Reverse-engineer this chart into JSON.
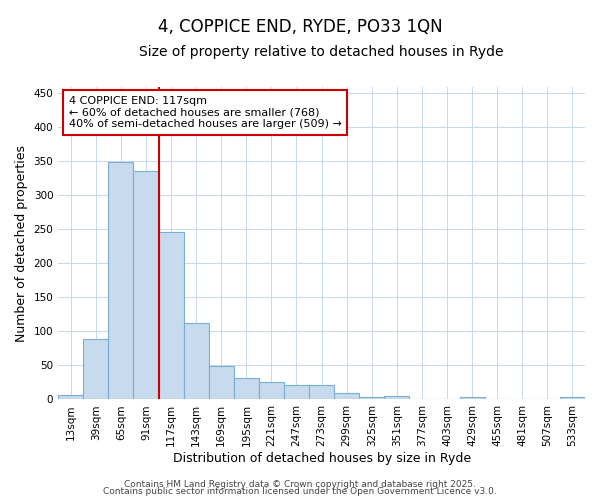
{
  "title": "4, COPPICE END, RYDE, PO33 1QN",
  "subtitle": "Size of property relative to detached houses in Ryde",
  "xlabel": "Distribution of detached houses by size in Ryde",
  "ylabel": "Number of detached properties",
  "categories": [
    "13sqm",
    "39sqm",
    "65sqm",
    "91sqm",
    "117sqm",
    "143sqm",
    "169sqm",
    "195sqm",
    "221sqm",
    "247sqm",
    "273sqm",
    "299sqm",
    "325sqm",
    "351sqm",
    "377sqm",
    "403sqm",
    "429sqm",
    "455sqm",
    "481sqm",
    "507sqm",
    "533sqm"
  ],
  "values": [
    6,
    89,
    349,
    336,
    246,
    113,
    49,
    32,
    25,
    21,
    21,
    9,
    3,
    5,
    1,
    1,
    3,
    0,
    0,
    0,
    3
  ],
  "bar_color": "#c8daee",
  "bar_edge_color": "#7aafd4",
  "vline_color": "#cc0000",
  "annotation_text": "4 COPPICE END: 117sqm\n← 60% of detached houses are smaller (768)\n40% of semi-detached houses are larger (509) →",
  "annotation_box_color": "white",
  "annotation_box_edge": "#cc0000",
  "ylim": [
    0,
    460
  ],
  "yticks": [
    0,
    50,
    100,
    150,
    200,
    250,
    300,
    350,
    400,
    450
  ],
  "footer1": "Contains HM Land Registry data © Crown copyright and database right 2025.",
  "footer2": "Contains public sector information licensed under the Open Government Licence v3.0.",
  "bg_color": "#ffffff",
  "grid_color": "#c8d8ec",
  "title_fontsize": 12,
  "subtitle_fontsize": 10,
  "axis_label_fontsize": 9,
  "tick_fontsize": 7.5,
  "annotation_fontsize": 8,
  "footer_fontsize": 6.5
}
